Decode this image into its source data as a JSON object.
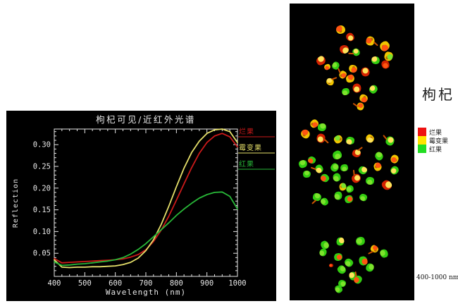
{
  "chart_data": {
    "type": "line",
    "title": "枸杞可见/近红外光谱",
    "xlabel": "Wavelength (nm)",
    "ylabel": "Reflection",
    "xlim": [
      400,
      1000
    ],
    "ylim": [
      0,
      0.336
    ],
    "xticks": [
      400,
      500,
      600,
      700,
      800,
      900,
      1000
    ],
    "yticks": [
      0.05,
      0.1,
      0.15,
      0.2,
      0.25,
      0.3
    ],
    "grid": false,
    "legend_position": "right-outside",
    "background": "#000000",
    "axis_color": "#e8e8e8",
    "x": [
      400,
      425,
      450,
      475,
      500,
      525,
      550,
      575,
      600,
      625,
      650,
      675,
      700,
      725,
      750,
      775,
      800,
      825,
      850,
      875,
      900,
      925,
      950,
      975,
      1000
    ],
    "series": [
      {
        "name": "烂果",
        "color": "#cc1a1a",
        "values": [
          0.038,
          0.028,
          0.029,
          0.03,
          0.031,
          0.032,
          0.033,
          0.034,
          0.035,
          0.037,
          0.041,
          0.047,
          0.058,
          0.077,
          0.103,
          0.135,
          0.172,
          0.21,
          0.247,
          0.28,
          0.305,
          0.32,
          0.326,
          0.318,
          0.295
        ]
      },
      {
        "name": "霉变果",
        "color": "#e6e06a",
        "values": [
          0.035,
          0.018,
          0.017,
          0.018,
          0.018,
          0.019,
          0.019,
          0.02,
          0.021,
          0.024,
          0.029,
          0.039,
          0.056,
          0.081,
          0.116,
          0.158,
          0.203,
          0.246,
          0.282,
          0.308,
          0.326,
          0.334,
          0.336,
          0.33,
          0.305
        ]
      },
      {
        "name": "红果",
        "color": "#28b838",
        "values": [
          0.03,
          0.022,
          0.023,
          0.025,
          0.026,
          0.028,
          0.03,
          0.032,
          0.035,
          0.04,
          0.048,
          0.059,
          0.072,
          0.088,
          0.104,
          0.12,
          0.137,
          0.152,
          0.165,
          0.177,
          0.185,
          0.19,
          0.191,
          0.181,
          0.152
        ]
      }
    ]
  },
  "image_panel": {
    "label": "枸杞",
    "caption": "400-1000 nm",
    "legend": [
      {
        "label": "烂果",
        "color": "#ee1111"
      },
      {
        "label": "霉变果",
        "color": "#ffe400"
      },
      {
        "label": "红果",
        "color": "#22dd22"
      }
    ],
    "palette": {
      "R": "#d42200",
      "Y": "#f0c400",
      "G": "#33cc11"
    },
    "palette2": {
      "R": "#ff5511",
      "Y": "#ffe25a",
      "G": "#7de32c"
    },
    "berries": [
      [
        483,
        42,
        13,
        "Y",
        "R",
        0
      ],
      [
        497,
        53,
        12,
        "R",
        "Y",
        0
      ],
      [
        525,
        58,
        13,
        "Y",
        "R",
        1
      ],
      [
        546,
        66,
        14,
        "Y",
        "R",
        0
      ],
      [
        488,
        70,
        13,
        "R",
        "Y",
        0
      ],
      [
        505,
        74,
        11,
        "G",
        "Y",
        1
      ],
      [
        551,
        80,
        13,
        "Y",
        "G",
        0
      ],
      [
        455,
        86,
        13,
        "R",
        "Y",
        0
      ],
      [
        533,
        86,
        12,
        "G",
        "Y",
        0
      ],
      [
        547,
        92,
        12,
        "R",
        "R",
        0
      ],
      [
        476,
        93,
        11,
        "G",
        "G",
        0
      ],
      [
        464,
        95,
        9,
        "Y",
        "R",
        0
      ],
      [
        501,
        98,
        12,
        "Y",
        "R",
        0
      ],
      [
        518,
        102,
        13,
        "R",
        "Y",
        0
      ],
      [
        486,
        106,
        11,
        "Y",
        "R",
        1
      ],
      [
        497,
        112,
        12,
        "Y",
        "R",
        0
      ],
      [
        468,
        116,
        11,
        "Y",
        "Y",
        1
      ],
      [
        506,
        125,
        13,
        "R",
        "Y",
        0
      ],
      [
        530,
        127,
        12,
        "G",
        "Y",
        0
      ],
      [
        490,
        130,
        11,
        "G",
        "G",
        0
      ],
      [
        516,
        140,
        12,
        "Y",
        "R",
        0
      ],
      [
        511,
        151,
        11,
        "Y",
        "R",
        1
      ],
      [
        446,
        176,
        12,
        "Y",
        "R",
        0
      ],
      [
        457,
        181,
        12,
        "G",
        "G",
        0
      ],
      [
        433,
        190,
        13,
        "Y",
        "R",
        0
      ],
      [
        455,
        196,
        13,
        "R",
        "Y",
        1
      ],
      [
        480,
        198,
        12,
        "Y",
        "G",
        0
      ],
      [
        497,
        200,
        12,
        "G",
        "Y",
        0
      ],
      [
        525,
        197,
        12,
        "Y",
        "Y",
        0
      ],
      [
        553,
        200,
        13,
        "G",
        "Y",
        1
      ],
      [
        478,
        220,
        13,
        "G",
        "G",
        0
      ],
      [
        506,
        218,
        12,
        "R",
        "Y",
        1
      ],
      [
        538,
        222,
        12,
        "G",
        "G",
        0
      ],
      [
        560,
        226,
        12,
        "Y",
        "R",
        0
      ],
      [
        430,
        233,
        12,
        "G",
        "G",
        0
      ],
      [
        442,
        227,
        11,
        "G",
        "R",
        0
      ],
      [
        453,
        240,
        12,
        "G",
        "Y",
        1
      ],
      [
        475,
        238,
        12,
        "G",
        "G",
        0
      ],
      [
        488,
        238,
        11,
        "G",
        "G",
        0
      ],
      [
        515,
        242,
        12,
        "G",
        "Y",
        0
      ],
      [
        536,
        237,
        12,
        "Y",
        "R",
        0
      ],
      [
        560,
        242,
        12,
        "G",
        "Y",
        0
      ],
      [
        435,
        247,
        11,
        "G",
        "G",
        0
      ],
      [
        461,
        253,
        12,
        "G",
        "R",
        0
      ],
      [
        478,
        252,
        12,
        "G",
        "G",
        0
      ],
      [
        505,
        253,
        13,
        "R",
        "Y",
        1
      ],
      [
        525,
        257,
        12,
        "G",
        "G",
        0
      ],
      [
        549,
        263,
        14,
        "R",
        "Y",
        0
      ],
      [
        486,
        265,
        11,
        "Y",
        "G",
        0
      ],
      [
        496,
        268,
        11,
        "G",
        "G",
        0
      ],
      [
        450,
        280,
        12,
        "G",
        "G",
        1
      ],
      [
        460,
        286,
        11,
        "G",
        "G",
        0
      ],
      [
        480,
        278,
        12,
        "G",
        "G",
        0
      ],
      [
        495,
        283,
        12,
        "G",
        "R",
        0
      ],
      [
        515,
        280,
        11,
        "G",
        "G",
        0
      ],
      [
        461,
        348,
        12,
        "G",
        "G",
        0
      ],
      [
        483,
        343,
        12,
        "G",
        "Y",
        0
      ],
      [
        511,
        342,
        13,
        "G",
        "G",
        0
      ],
      [
        531,
        353,
        11,
        "Y",
        "R",
        1
      ],
      [
        545,
        360,
        12,
        "G",
        "G",
        0
      ],
      [
        458,
        358,
        11,
        "G",
        "G",
        0
      ],
      [
        480,
        365,
        12,
        "G",
        "R",
        0
      ],
      [
        495,
        373,
        12,
        "G",
        "G",
        0
      ],
      [
        515,
        370,
        13,
        "G",
        "R",
        0
      ],
      [
        525,
        380,
        12,
        "G",
        "G",
        0
      ],
      [
        470,
        377,
        6,
        "R",
        "R",
        0
      ],
      [
        485,
        383,
        12,
        "G",
        "G",
        0
      ],
      [
        501,
        392,
        12,
        "G",
        "Y",
        0
      ],
      [
        508,
        397,
        12,
        "G",
        "R",
        1
      ],
      [
        485,
        402,
        11,
        "G",
        "G",
        0
      ],
      [
        480,
        410,
        11,
        "G",
        "G",
        0
      ]
    ]
  }
}
